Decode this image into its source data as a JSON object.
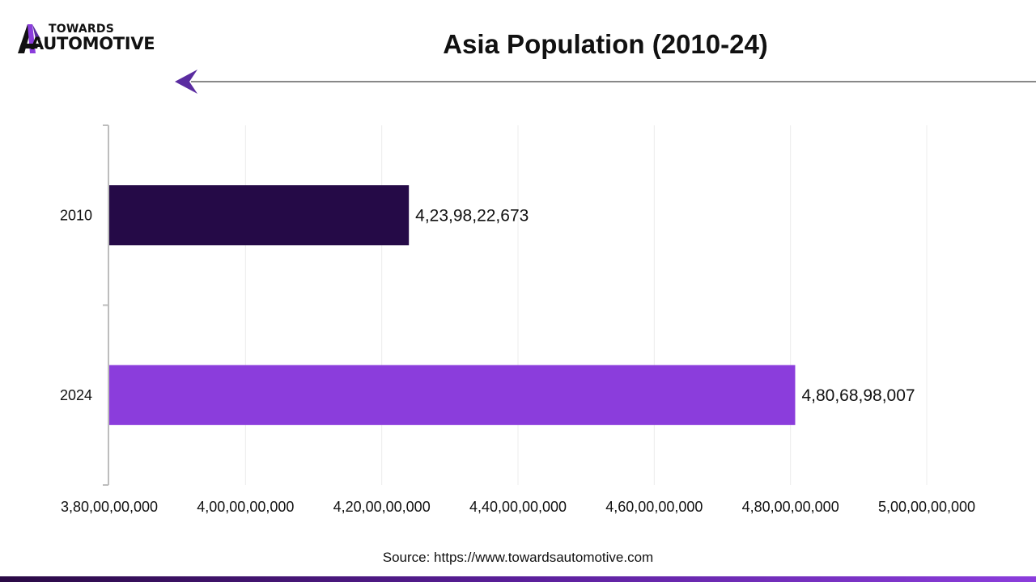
{
  "brand": {
    "line1": "TOWARDS",
    "line2": "AUTOMOTIVE",
    "icon": "brand-mark-icon",
    "colors": {
      "dark": "#111111",
      "purple": "#8b3ddc",
      "violet": "#5a2ca0"
    }
  },
  "chart_data": {
    "type": "bar",
    "orientation": "horizontal",
    "title": "Asia Population (2010-24)",
    "categories": [
      "2010",
      "2024"
    ],
    "values": [
      4239822673,
      4806898007
    ],
    "value_labels": [
      "4,23,98,22,673",
      "4,80,68,98,007"
    ],
    "bar_colors": [
      "#250a47",
      "#8b3ddc"
    ],
    "xlim": [
      3800000000,
      5000000000
    ],
    "x_ticks": [
      3800000000,
      4000000000,
      4200000000,
      4400000000,
      4600000000,
      4800000000,
      5000000000
    ],
    "x_tick_labels": [
      "3,80,00,00,000",
      "4,00,00,00,000",
      "4,20,00,00,000",
      "4,40,00,00,000",
      "4,60,00,00,000",
      "4,80,00,00,000",
      "5,00,00,00,000"
    ],
    "xlabel": "",
    "ylabel": "",
    "grid": "vertical",
    "legend": "none"
  },
  "footer": {
    "source": "Source: https://www.towardsautomotive.com",
    "gradient": [
      "#2a0a45",
      "#5a1f9a",
      "#8b3ddc"
    ]
  }
}
